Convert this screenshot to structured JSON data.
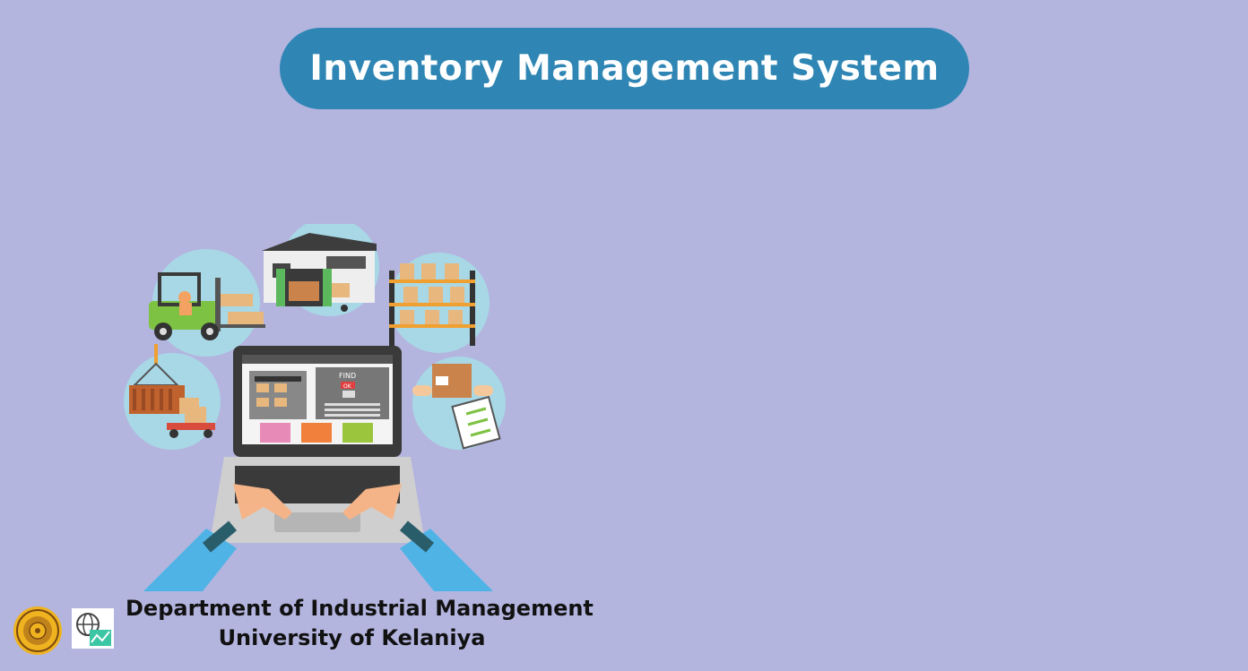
{
  "header": {
    "title": "Inventory Management System"
  },
  "illustration": {
    "icon": "inventory-laptop-illustration",
    "screen_find_label": "FIND",
    "screen_ok_label": "OK"
  },
  "footer": {
    "department": "Department of Industrial Management",
    "university": "University of Kelaniya"
  },
  "colors": {
    "background": "#b3b5df",
    "banner": "#2f86b4",
    "banner_text": "#ffffff",
    "footer_text": "#111111"
  }
}
